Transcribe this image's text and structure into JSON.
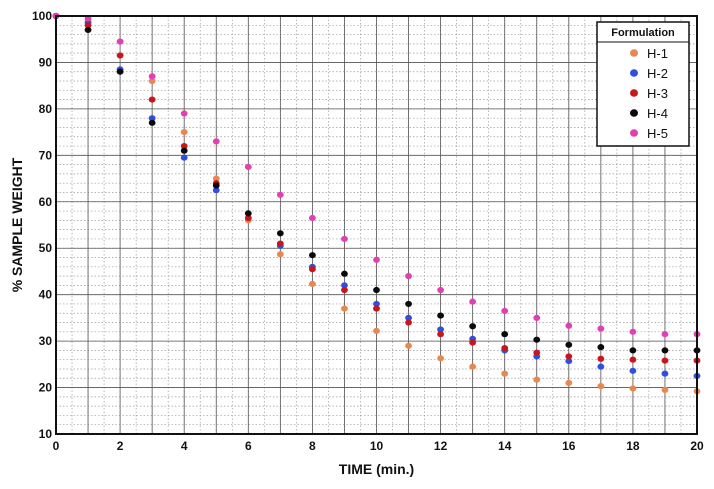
{
  "chart_data": {
    "type": "scatter",
    "title": "",
    "xlabel": "TIME (min.)",
    "ylabel": "% SAMPLE WEIGHT",
    "xlim": [
      0,
      20
    ],
    "ylim": [
      10,
      100
    ],
    "x_ticks": [
      0,
      2,
      4,
      6,
      8,
      10,
      12,
      14,
      16,
      18,
      20
    ],
    "y_ticks": [
      10,
      20,
      30,
      40,
      50,
      60,
      70,
      80,
      90,
      100
    ],
    "grid": true,
    "legend": {
      "title": "Formulation",
      "position": "top-right"
    },
    "x": [
      0,
      1,
      2,
      3,
      4,
      5,
      6,
      7,
      8,
      9,
      10,
      11,
      12,
      13,
      14,
      15,
      16,
      17,
      18,
      19,
      20
    ],
    "series": [
      {
        "name": "H-1",
        "color": "#e8874f",
        "values": [
          100,
          99,
          94.5,
          86,
          75,
          65,
          56,
          48.7,
          42.3,
          37,
          32.2,
          29,
          26.3,
          24.5,
          23,
          21.7,
          21,
          20.3,
          19.8,
          19.5,
          19.2
        ]
      },
      {
        "name": "H-2",
        "color": "#2f4fe0",
        "values": [
          100,
          98.5,
          88.5,
          78,
          69.5,
          62.5,
          56.5,
          50.5,
          46,
          42,
          38,
          35,
          32.5,
          30.5,
          28,
          26.7,
          25.7,
          24.5,
          23.6,
          23,
          22.5
        ]
      },
      {
        "name": "H-3",
        "color": "#c8161c",
        "values": [
          100,
          98,
          91.5,
          82,
          72,
          64,
          56.5,
          51,
          45.5,
          41,
          37,
          34,
          31.5,
          29.7,
          28.5,
          27.5,
          26.7,
          26.2,
          26,
          25.8,
          25.8
        ]
      },
      {
        "name": "H-4",
        "color": "#0a0a0a",
        "values": [
          100,
          97,
          88,
          77,
          71,
          63.5,
          57.5,
          53.2,
          48.5,
          44.5,
          41,
          38,
          35.5,
          33.2,
          31.5,
          30.3,
          29.2,
          28.7,
          28,
          28,
          28
        ]
      },
      {
        "name": "H-5",
        "color": "#e23fb4",
        "values": [
          100,
          99.5,
          94.5,
          87,
          79,
          73,
          67.5,
          61.5,
          56.5,
          52,
          47.5,
          44,
          41,
          38.5,
          36.5,
          35,
          33.3,
          32.7,
          32,
          31.5,
          31.5
        ]
      }
    ]
  }
}
